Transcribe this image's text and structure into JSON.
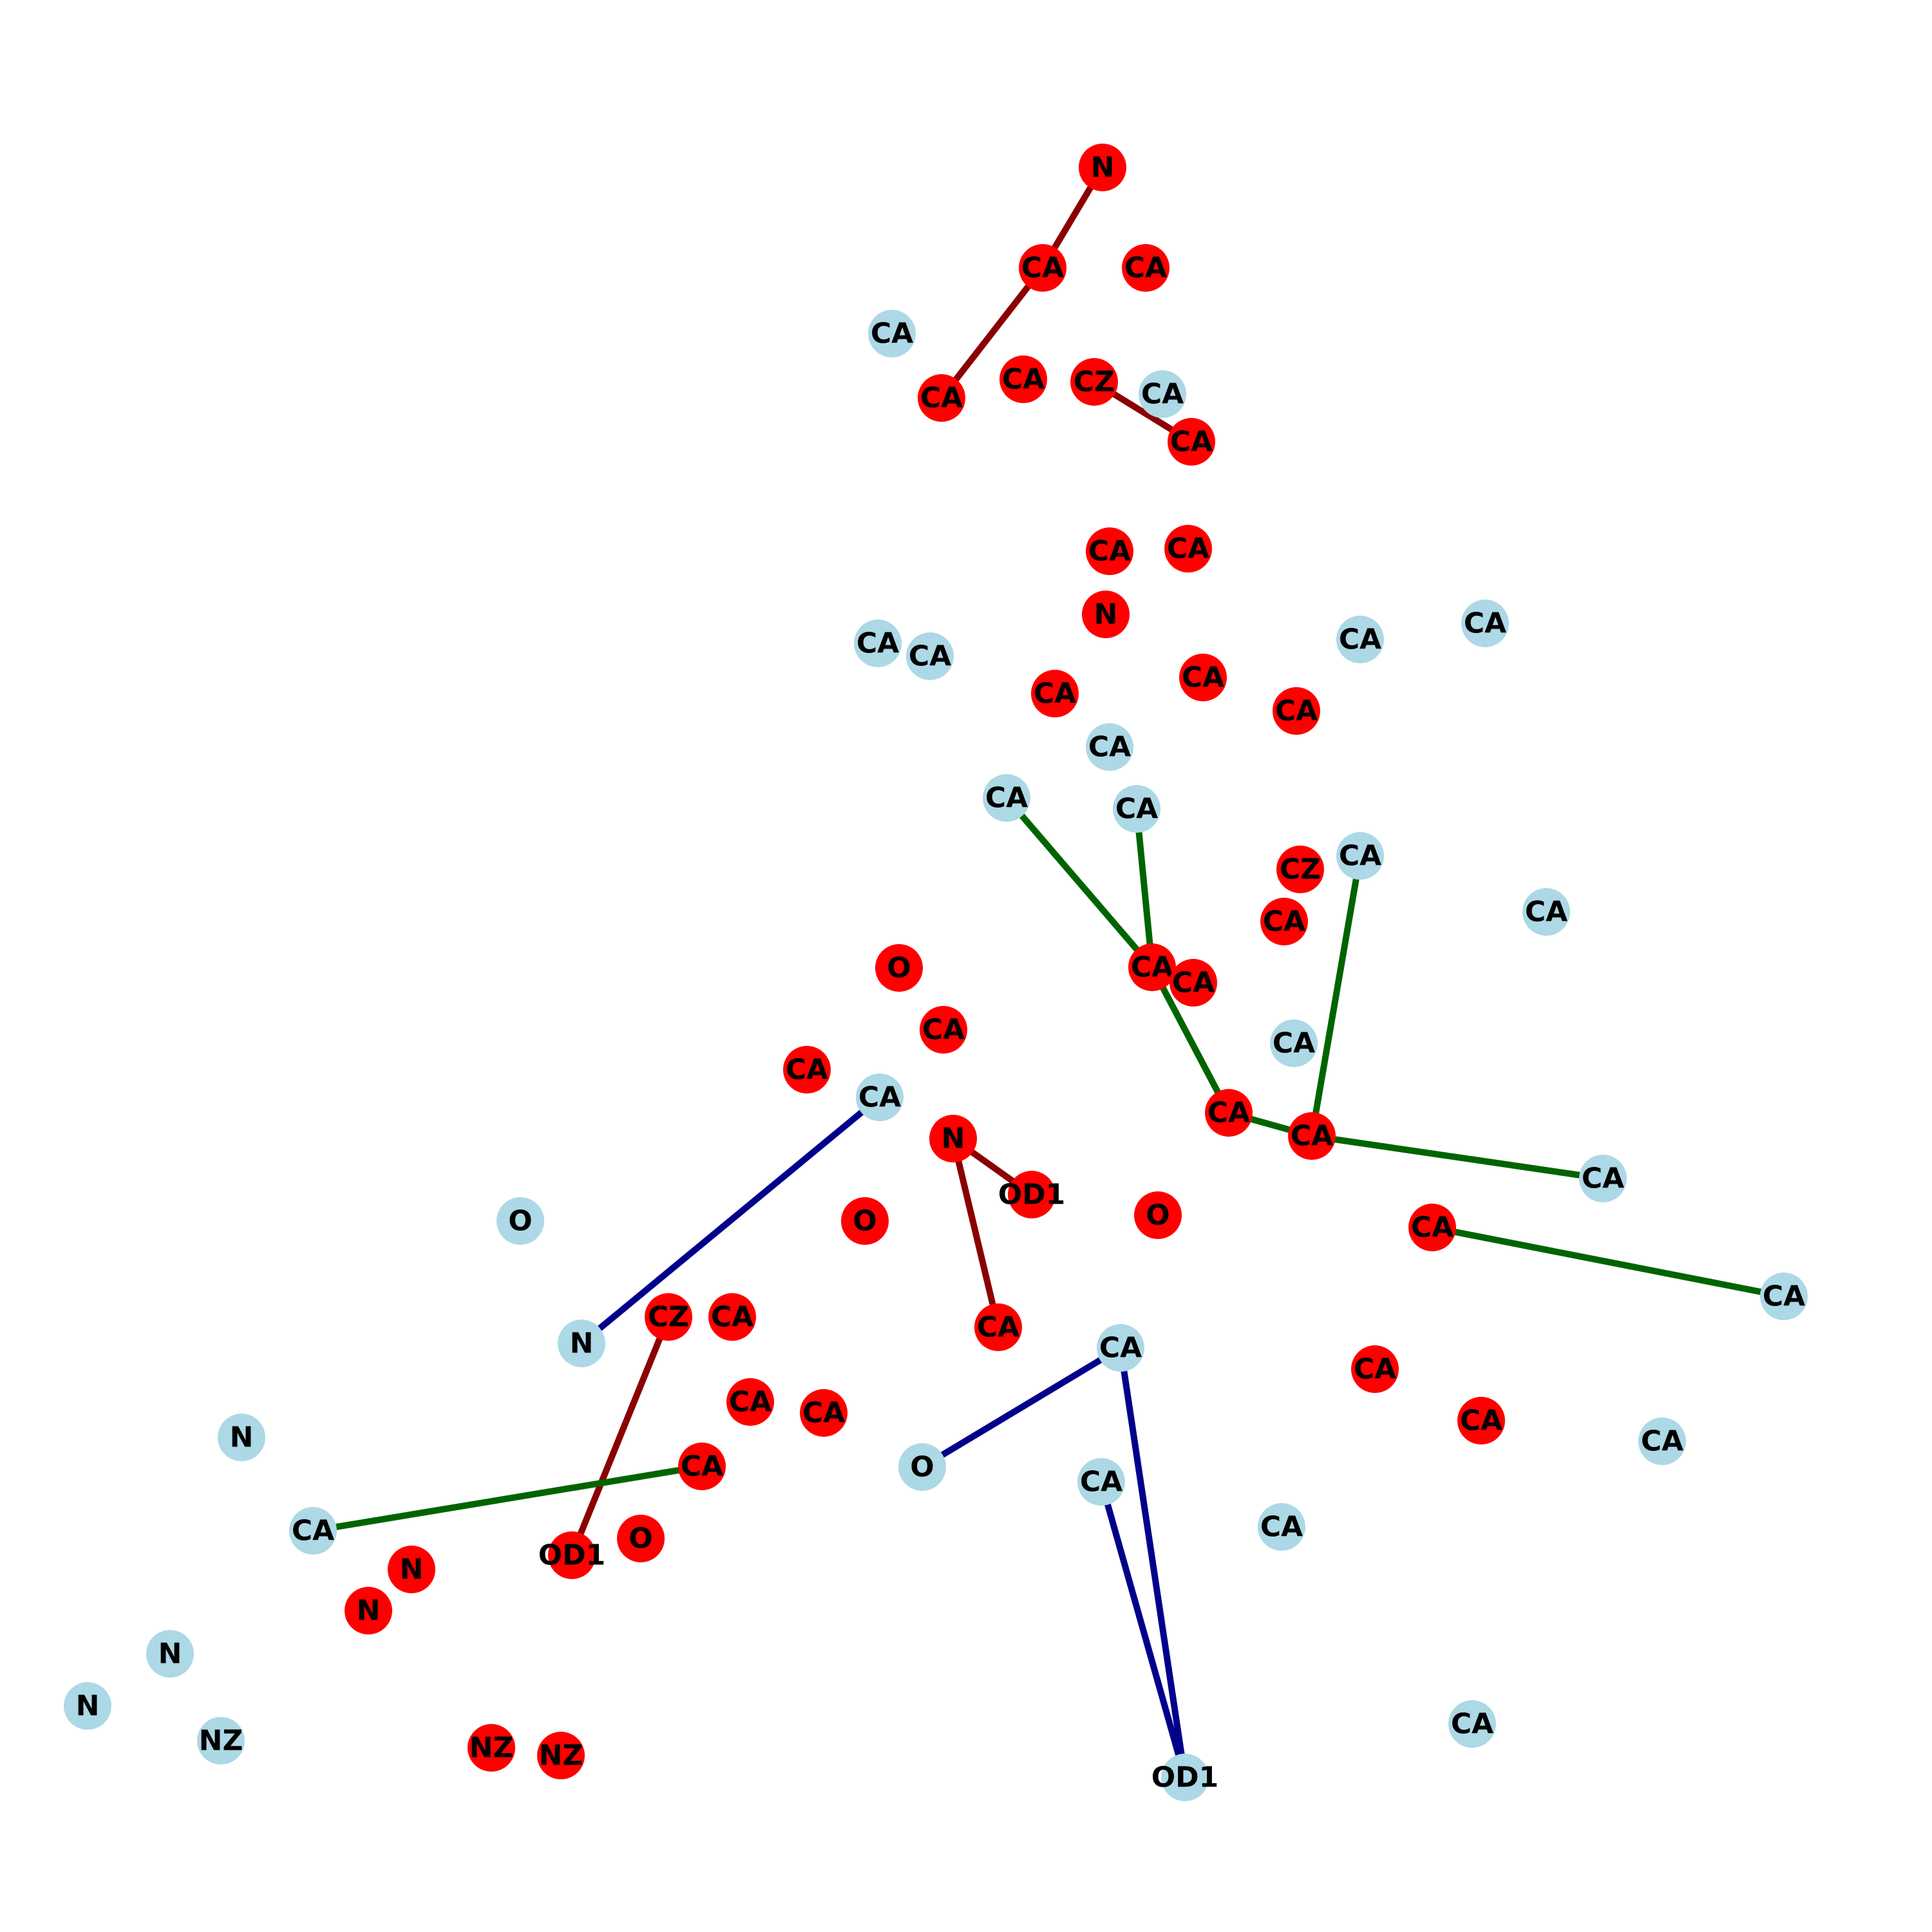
{
  "colors": {
    "red_node": "#ff0000",
    "blue_node": "#add8e6",
    "edge_red": "#8b0000",
    "edge_green": "#006400",
    "edge_blue": "#00008b",
    "background": "#ffffff"
  },
  "legend": "none",
  "nodes": [
    {
      "id": "r1",
      "label": "N",
      "group": "red"
    },
    {
      "id": "r2",
      "label": "CA",
      "group": "red"
    },
    {
      "id": "r3",
      "label": "CA",
      "group": "red"
    },
    {
      "id": "r4",
      "label": "CA",
      "group": "red"
    },
    {
      "id": "r5",
      "label": "CA",
      "group": "red"
    },
    {
      "id": "r6",
      "label": "CZ",
      "group": "red"
    },
    {
      "id": "r7",
      "label": "CA",
      "group": "red"
    },
    {
      "id": "r8",
      "label": "CA",
      "group": "red"
    },
    {
      "id": "r9",
      "label": "CA",
      "group": "red"
    },
    {
      "id": "r10",
      "label": "N",
      "group": "red"
    },
    {
      "id": "r11",
      "label": "CA",
      "group": "red"
    },
    {
      "id": "r12",
      "label": "CA",
      "group": "red"
    },
    {
      "id": "r13",
      "label": "CA",
      "group": "red"
    },
    {
      "id": "r14",
      "label": "CZ",
      "group": "red"
    },
    {
      "id": "r15",
      "label": "CA",
      "group": "red"
    },
    {
      "id": "r16",
      "label": "CA",
      "group": "red"
    },
    {
      "id": "r17",
      "label": "CA",
      "group": "red"
    },
    {
      "id": "r18",
      "label": "O",
      "group": "red"
    },
    {
      "id": "r19",
      "label": "CA",
      "group": "red"
    },
    {
      "id": "r20",
      "label": "CA",
      "group": "red"
    },
    {
      "id": "r21",
      "label": "N",
      "group": "red"
    },
    {
      "id": "r22",
      "label": "CA",
      "group": "red"
    },
    {
      "id": "r23",
      "label": "CA",
      "group": "red"
    },
    {
      "id": "r24",
      "label": "OD1",
      "group": "red"
    },
    {
      "id": "r25",
      "label": "O",
      "group": "red"
    },
    {
      "id": "r26",
      "label": "O",
      "group": "red"
    },
    {
      "id": "r27",
      "label": "CA",
      "group": "red"
    },
    {
      "id": "r28",
      "label": "CZ",
      "group": "red"
    },
    {
      "id": "r29",
      "label": "CA",
      "group": "red"
    },
    {
      "id": "r30",
      "label": "CA",
      "group": "red"
    },
    {
      "id": "r31",
      "label": "CA",
      "group": "red"
    },
    {
      "id": "r32",
      "label": "CA",
      "group": "red"
    },
    {
      "id": "r33",
      "label": "CA",
      "group": "red"
    },
    {
      "id": "r34",
      "label": "CA",
      "group": "red"
    },
    {
      "id": "r35",
      "label": "CA",
      "group": "red"
    },
    {
      "id": "r36",
      "label": "OD1",
      "group": "red"
    },
    {
      "id": "r37",
      "label": "O",
      "group": "red"
    },
    {
      "id": "r38",
      "label": "N",
      "group": "red"
    },
    {
      "id": "r39",
      "label": "N",
      "group": "red"
    },
    {
      "id": "r40",
      "label": "NZ",
      "group": "red"
    },
    {
      "id": "r41",
      "label": "NZ",
      "group": "red"
    },
    {
      "id": "b1",
      "label": "CA",
      "group": "blue"
    },
    {
      "id": "b2",
      "label": "CA",
      "group": "blue"
    },
    {
      "id": "b3",
      "label": "CA",
      "group": "blue"
    },
    {
      "id": "b4",
      "label": "CA",
      "group": "blue"
    },
    {
      "id": "b5",
      "label": "CA",
      "group": "blue"
    },
    {
      "id": "b6",
      "label": "CA",
      "group": "blue"
    },
    {
      "id": "b7",
      "label": "CA",
      "group": "blue"
    },
    {
      "id": "b8",
      "label": "CA",
      "group": "blue"
    },
    {
      "id": "b9",
      "label": "CA",
      "group": "blue"
    },
    {
      "id": "b10",
      "label": "CA",
      "group": "blue"
    },
    {
      "id": "b11",
      "label": "CA",
      "group": "blue"
    },
    {
      "id": "b12",
      "label": "CA",
      "group": "blue"
    },
    {
      "id": "b13",
      "label": "CA",
      "group": "blue"
    },
    {
      "id": "b14",
      "label": "CA",
      "group": "blue"
    },
    {
      "id": "b15",
      "label": "CA",
      "group": "blue"
    },
    {
      "id": "b16",
      "label": "O",
      "group": "blue"
    },
    {
      "id": "b17",
      "label": "N",
      "group": "blue"
    },
    {
      "id": "b18",
      "label": "CA",
      "group": "blue"
    },
    {
      "id": "b19",
      "label": "N",
      "group": "blue"
    },
    {
      "id": "b20",
      "label": "O",
      "group": "blue"
    },
    {
      "id": "b21",
      "label": "CA",
      "group": "blue"
    },
    {
      "id": "b22",
      "label": "CA",
      "group": "blue"
    },
    {
      "id": "b23",
      "label": "CA",
      "group": "blue"
    },
    {
      "id": "b24",
      "label": "CA",
      "group": "blue"
    },
    {
      "id": "b25",
      "label": "N",
      "group": "blue"
    },
    {
      "id": "b26",
      "label": "N",
      "group": "blue"
    },
    {
      "id": "b27",
      "label": "NZ",
      "group": "blue"
    },
    {
      "id": "b28",
      "label": "CA",
      "group": "blue"
    },
    {
      "id": "b29",
      "label": "OD1",
      "group": "blue"
    }
  ],
  "edges": [
    {
      "from": "r1",
      "to": "r2",
      "color": "red"
    },
    {
      "from": "r2",
      "to": "r4",
      "color": "red"
    },
    {
      "from": "r6",
      "to": "r7",
      "color": "red"
    },
    {
      "from": "r21",
      "to": "r24",
      "color": "red"
    },
    {
      "from": "r21",
      "to": "r27",
      "color": "red"
    },
    {
      "from": "r28",
      "to": "r36",
      "color": "red"
    },
    {
      "from": "b7",
      "to": "r16",
      "color": "green"
    },
    {
      "from": "b8",
      "to": "r16",
      "color": "green"
    },
    {
      "from": "r16",
      "to": "r22",
      "color": "green"
    },
    {
      "from": "r22",
      "to": "r23",
      "color": "green"
    },
    {
      "from": "b9",
      "to": "r23",
      "color": "green"
    },
    {
      "from": "r23",
      "to": "b13",
      "color": "green"
    },
    {
      "from": "r29",
      "to": "b14",
      "color": "green"
    },
    {
      "from": "b23",
      "to": "r35",
      "color": "green"
    },
    {
      "from": "b12",
      "to": "b17",
      "color": "blue"
    },
    {
      "from": "b18",
      "to": "b20",
      "color": "blue"
    },
    {
      "from": "b18",
      "to": "b29",
      "color": "blue"
    },
    {
      "from": "b21",
      "to": "b29",
      "color": "blue"
    }
  ]
}
